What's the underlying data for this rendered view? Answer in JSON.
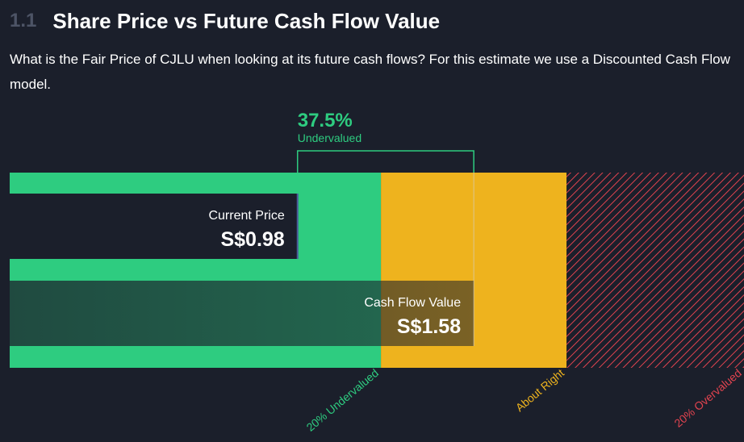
{
  "header": {
    "section_number": "1.1",
    "title": "Share Price vs Future Cash Flow Value",
    "description": "What is the Fair Price of CJLU when looking at its future cash flows? For this estimate we use a Discounted Cash Flow model."
  },
  "colors": {
    "background": "#1b1f2b",
    "undervalued": "#2ecc80",
    "about_right": "#eeb31e",
    "overvalued": "#e0434f",
    "white": "#ffffff",
    "muted": "#4d5466"
  },
  "chart_data": {
    "type": "bar",
    "title": "Share Price vs Future Cash Flow Value",
    "currency": "S$",
    "current_price": {
      "label": "Current Price",
      "value": 0.98,
      "display": "S$0.98"
    },
    "cash_flow_value": {
      "label": "Cash Flow Value",
      "value": 1.58,
      "display": "S$1.58"
    },
    "discount": {
      "percent_display": "37.5%",
      "status": "Undervalued"
    },
    "zones": [
      {
        "label": "20% Undervalued",
        "from": 0,
        "to": 1.264,
        "color": "#2ecc80"
      },
      {
        "label": "About Right",
        "from": 1.264,
        "to": 1.896,
        "color": "#eeb31e"
      },
      {
        "label": "20% Overvalued",
        "from": 1.896,
        "to": 2.5,
        "color": "#e0434f",
        "pattern": "hatched"
      }
    ],
    "xlim": [
      0,
      2.5
    ]
  }
}
